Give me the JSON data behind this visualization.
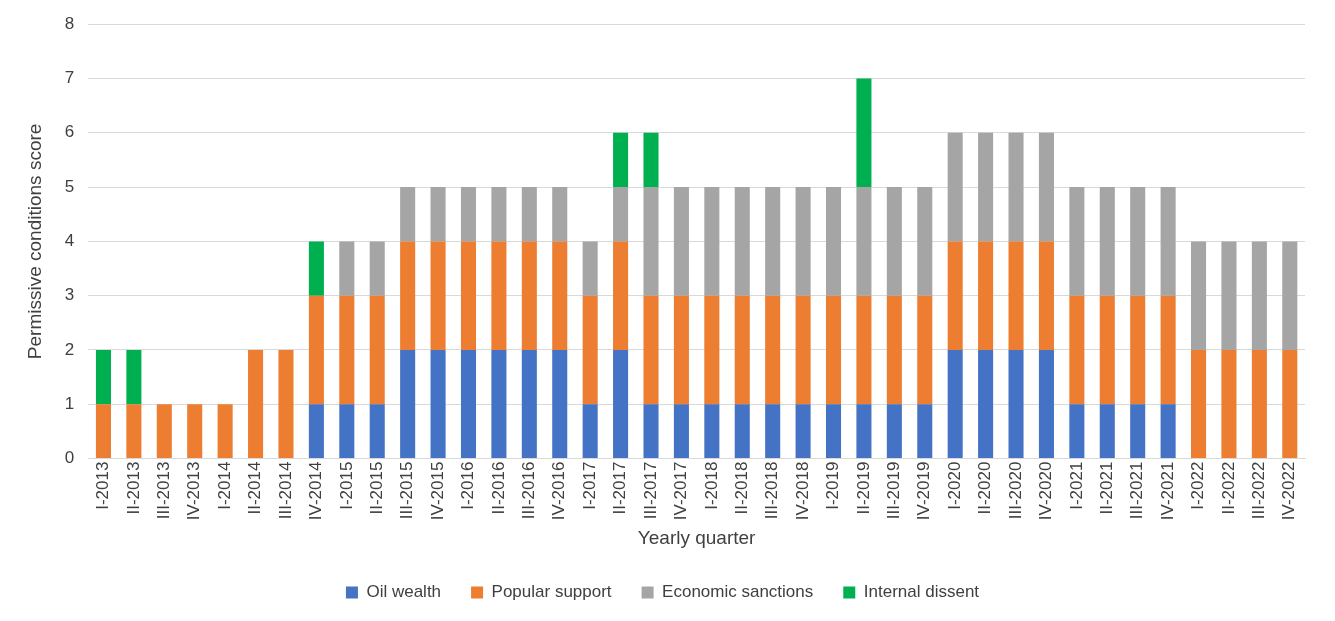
{
  "chart_data": {
    "type": "bar",
    "stacked": true,
    "xlabel": "Yearly quarter",
    "ylabel": "Permissive conditions score",
    "categories": [
      "I-2013",
      "II-2013",
      "III-2013",
      "IV-2013",
      "I-2014",
      "II-2014",
      "III-2014",
      "IV-2014",
      "I-2015",
      "II-2015",
      "III-2015",
      "IV-2015",
      "I-2016",
      "II-2016",
      "III-2016",
      "IV-2016",
      "I-2017",
      "II-2017",
      "III-2017",
      "IV-2017",
      "I-2018",
      "II-2018",
      "III-2018",
      "IV-2018",
      "I-2019",
      "II-2019",
      "III-2019",
      "IV-2019",
      "I-2020",
      "II-2020",
      "III-2020",
      "IV-2020",
      "I-2021",
      "II-2021",
      "III-2021",
      "IV-2021",
      "I-2022",
      "II-2022",
      "III-2022",
      "IV-2022"
    ],
    "series": [
      {
        "name": "Oil wealth",
        "color": "#4472c4",
        "values": [
          0,
          0,
          0,
          0,
          0,
          0,
          0,
          1,
          1,
          1,
          2,
          2,
          2,
          2,
          2,
          2,
          1,
          2,
          1,
          1,
          1,
          1,
          1,
          1,
          1,
          1,
          1,
          1,
          2,
          2,
          2,
          2,
          1,
          1,
          1,
          1,
          0,
          0,
          0,
          0
        ]
      },
      {
        "name": "Popular support",
        "color": "#ed7d31",
        "values": [
          1,
          1,
          1,
          1,
          1,
          2,
          2,
          2,
          2,
          2,
          2,
          2,
          2,
          2,
          2,
          2,
          2,
          2,
          2,
          2,
          2,
          2,
          2,
          2,
          2,
          2,
          2,
          2,
          2,
          2,
          2,
          2,
          2,
          2,
          2,
          2,
          2,
          2,
          2,
          2
        ]
      },
      {
        "name": "Economic sanctions",
        "color": "#a5a5a5",
        "values": [
          0,
          0,
          0,
          0,
          0,
          0,
          0,
          0,
          1,
          1,
          1,
          1,
          1,
          1,
          1,
          1,
          1,
          1,
          2,
          2,
          2,
          2,
          2,
          2,
          2,
          2,
          2,
          2,
          2,
          2,
          2,
          2,
          2,
          2,
          2,
          2,
          2,
          2,
          2,
          2
        ]
      },
      {
        "name": "Internal dissent",
        "color": "#00b050",
        "values": [
          1,
          1,
          0,
          0,
          0,
          0,
          0,
          1,
          0,
          0,
          0,
          0,
          0,
          0,
          0,
          0,
          0,
          1,
          1,
          0,
          0,
          0,
          0,
          0,
          0,
          2,
          0,
          0,
          0,
          0,
          0,
          0,
          0,
          0,
          0,
          0,
          0,
          0,
          0,
          0
        ]
      }
    ],
    "ylim": [
      0,
      8
    ],
    "yticks": [
      0,
      1,
      2,
      3,
      4,
      5,
      6,
      7,
      8
    ],
    "grid": "y",
    "legend": "bottom"
  }
}
